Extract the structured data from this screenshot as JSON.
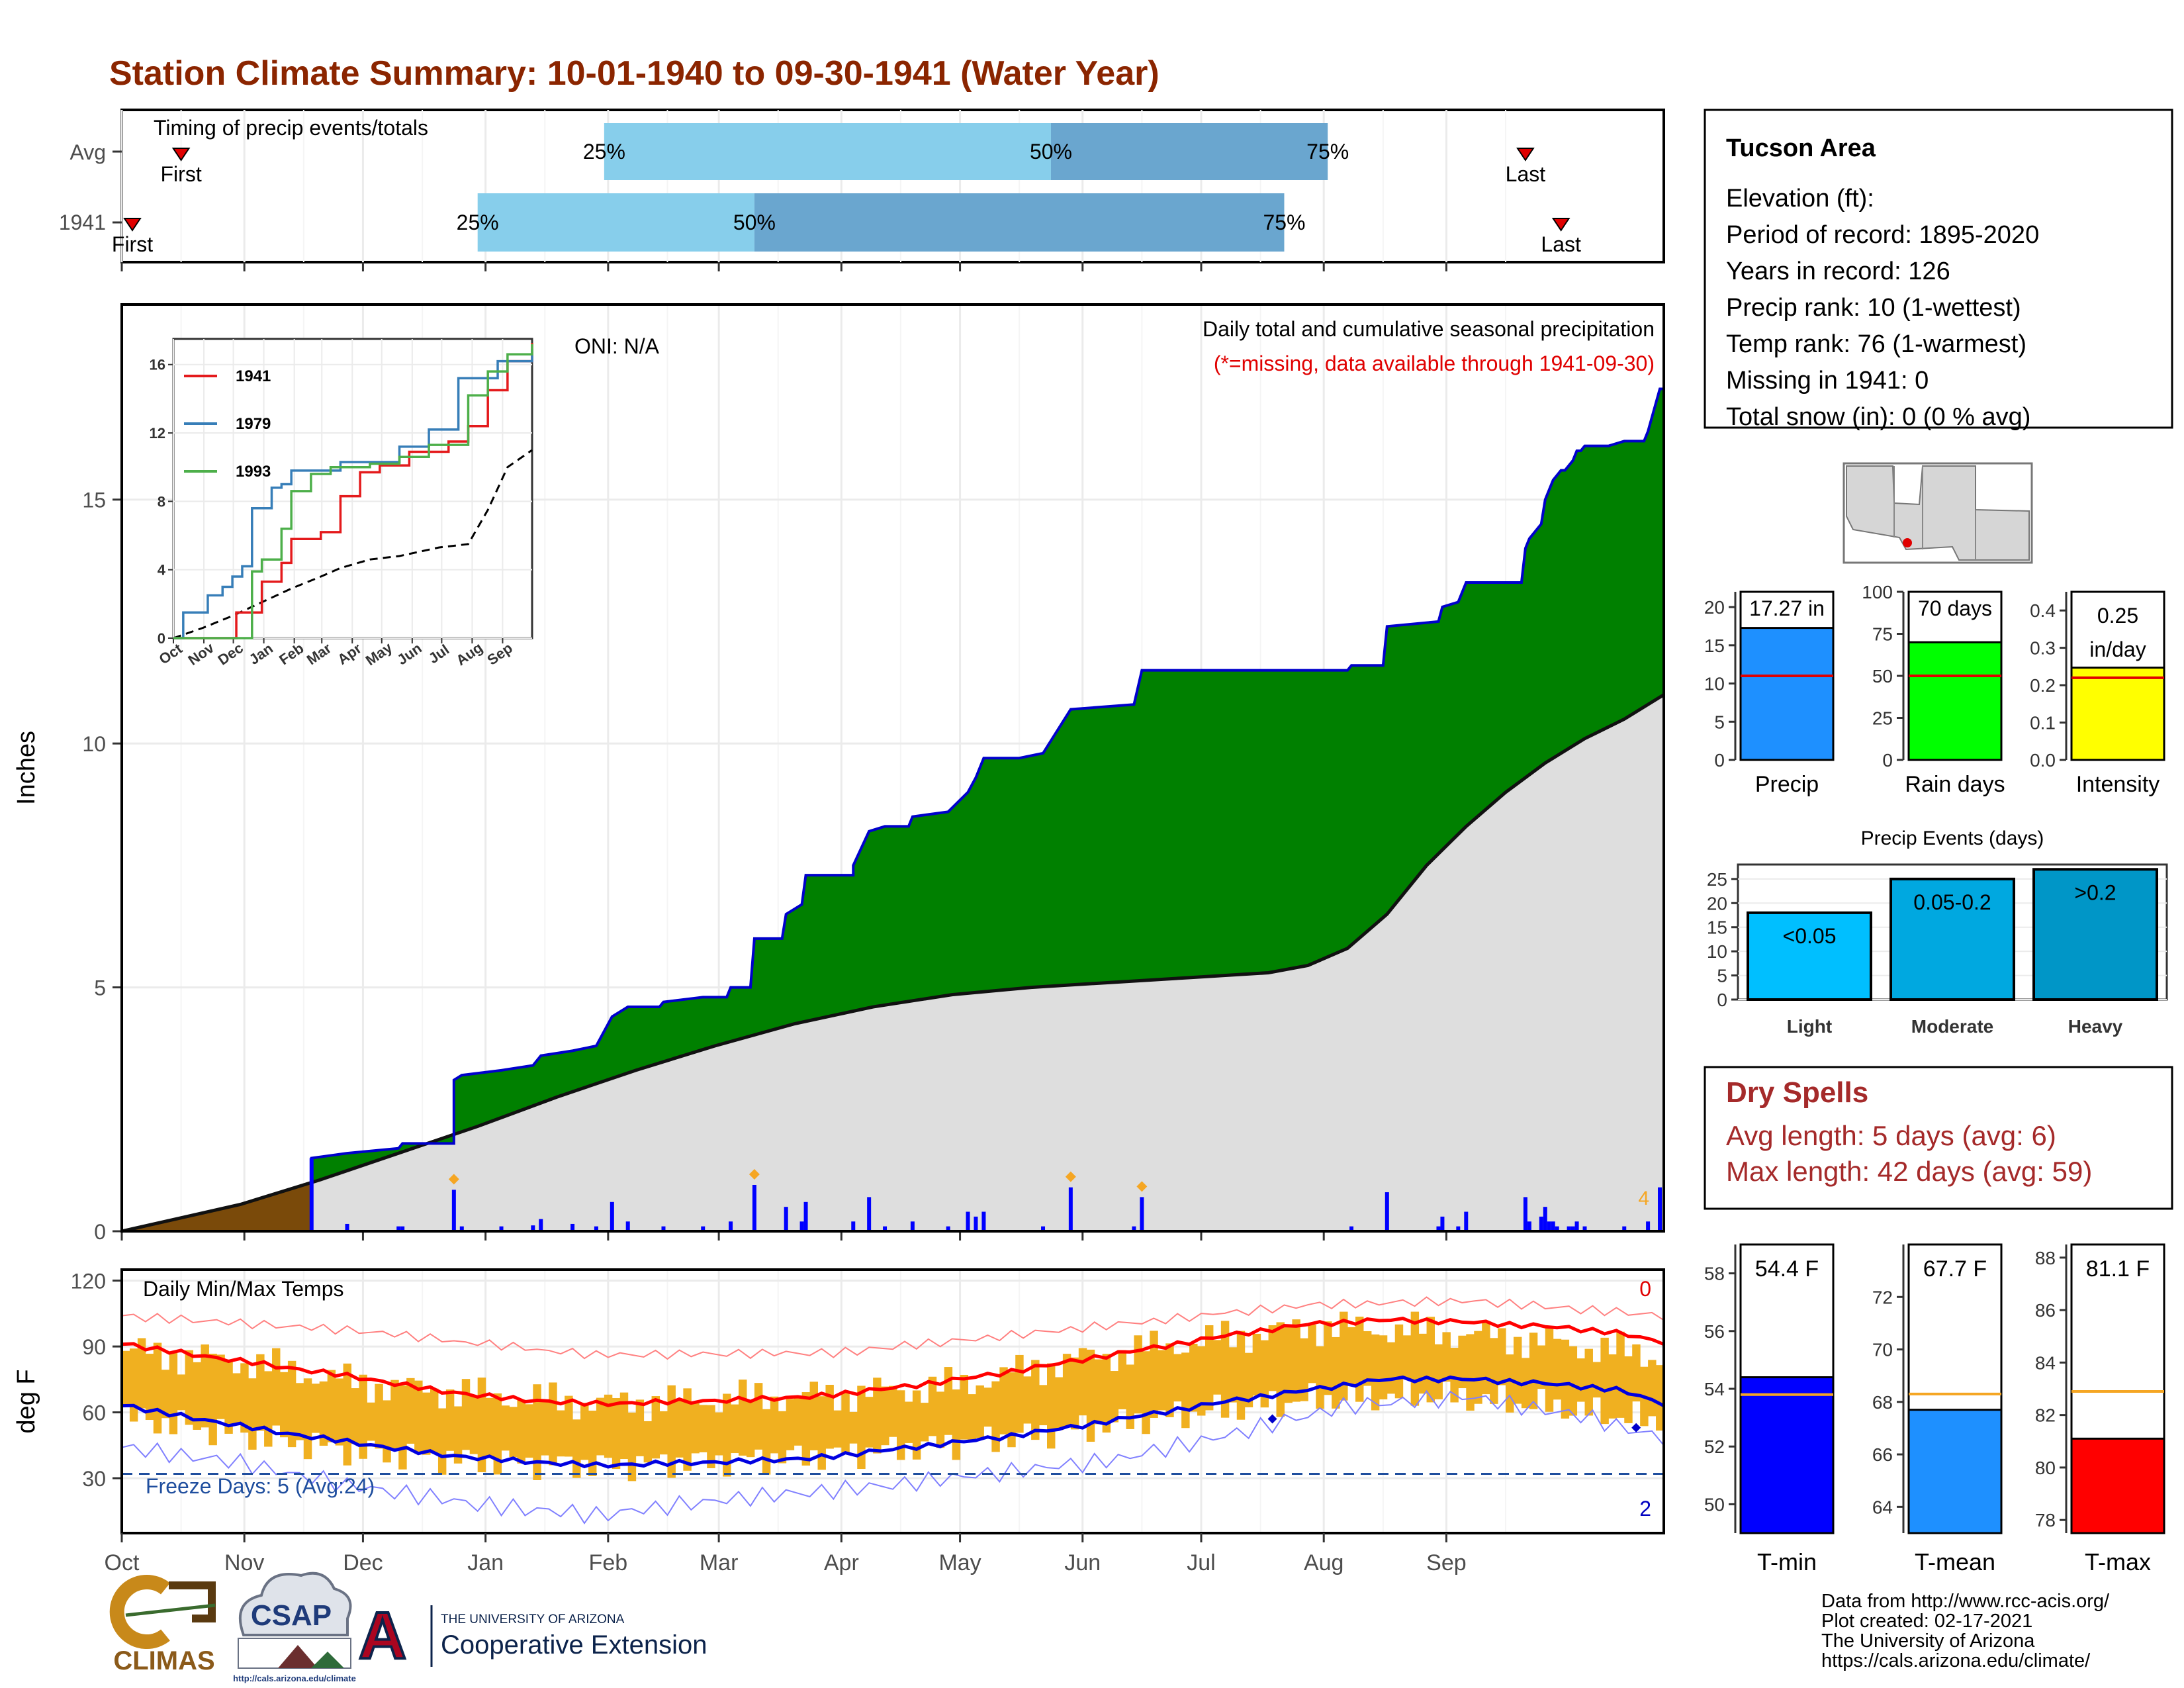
{
  "title": "Station Climate Summary: 10-01-1940 to 09-30-1941 (Water Year)",
  "months": [
    "Oct",
    "Nov",
    "Dec",
    "Jan",
    "Feb",
    "Mar",
    "Apr",
    "May",
    "Jun",
    "Jul",
    "Aug",
    "Sep"
  ],
  "timing": {
    "title": "Timing of precip events/totals",
    "rows": [
      {
        "label": "Avg",
        "first": "First",
        "last": "Last",
        "first_doy": 15,
        "last_doy": 355,
        "p25": 122,
        "p50": 235,
        "p75": 305
      },
      {
        "label": "1941",
        "first": "First",
        "last": "Last",
        "first_doy": 2,
        "last_doy": 364,
        "p25": 90,
        "p50": 160,
        "p75": 294
      }
    ],
    "p25_label": "25%",
    "p50_label": "50%",
    "p75_label": "75%"
  },
  "precip_panel": {
    "ylabel": "Inches",
    "annotation_title": "Daily total and cumulative seasonal precipitation",
    "annotation_missing": "(*=missing, data available through 1941-09-30)",
    "oni": "ONI: N/A",
    "yticks": [
      0,
      5,
      10,
      15
    ],
    "ylim": [
      0,
      19
    ],
    "end_marker": "4",
    "cumulative_steps": [
      [
        0,
        0.0
      ],
      [
        48,
        0.0
      ],
      [
        48,
        1.5
      ],
      [
        57,
        1.6
      ],
      [
        70,
        1.7
      ],
      [
        71,
        1.8
      ],
      [
        84,
        1.8
      ],
      [
        84,
        3.1
      ],
      [
        86,
        3.2
      ],
      [
        96,
        3.3
      ],
      [
        104,
        3.4
      ],
      [
        106,
        3.6
      ],
      [
        114,
        3.7
      ],
      [
        120,
        3.8
      ],
      [
        124,
        4.4
      ],
      [
        128,
        4.6
      ],
      [
        136,
        4.6
      ],
      [
        137,
        4.7
      ],
      [
        147,
        4.8
      ],
      [
        153,
        4.8
      ],
      [
        154,
        5.0
      ],
      [
        159,
        5.0
      ],
      [
        160,
        6.0
      ],
      [
        167,
        6.0
      ],
      [
        168,
        6.5
      ],
      [
        172,
        6.7
      ],
      [
        173,
        7.3
      ],
      [
        185,
        7.3
      ],
      [
        185,
        7.5
      ],
      [
        189,
        8.2
      ],
      [
        193,
        8.3
      ],
      [
        199,
        8.3
      ],
      [
        200,
        8.5
      ],
      [
        209,
        8.6
      ],
      [
        214,
        9.0
      ],
      [
        216,
        9.3
      ],
      [
        218,
        9.7
      ],
      [
        227,
        9.7
      ],
      [
        233,
        9.8
      ],
      [
        240,
        10.7
      ],
      [
        256,
        10.8
      ],
      [
        258,
        11.5
      ],
      [
        310,
        11.5
      ],
      [
        311,
        11.6
      ],
      [
        319,
        11.6
      ],
      [
        320,
        12.4
      ],
      [
        333,
        12.5
      ],
      [
        334,
        12.8
      ],
      [
        338,
        12.9
      ],
      [
        340,
        13.3
      ],
      [
        354,
        13.3
      ],
      [
        355,
        14.0
      ],
      [
        356,
        14.2
      ],
      [
        359,
        14.5
      ],
      [
        360,
        15.0
      ],
      [
        361,
        15.2
      ],
      [
        362,
        15.4
      ],
      [
        363,
        15.5
      ],
      [
        364,
        15.6
      ],
      [
        365,
        15.6
      ],
      [
        366,
        15.7
      ],
      [
        367,
        15.8
      ],
      [
        368,
        16.0
      ],
      [
        369,
        16.0
      ],
      [
        370,
        16.1
      ],
      [
        376,
        16.1
      ],
      [
        380,
        16.2
      ],
      [
        385,
        16.2
      ],
      [
        386,
        16.4
      ],
      [
        389,
        17.27
      ],
      [
        390,
        17.27
      ]
    ],
    "normal": [
      [
        0,
        0
      ],
      [
        30,
        0.55
      ],
      [
        50,
        1.05
      ],
      [
        70,
        1.6
      ],
      [
        90,
        2.15
      ],
      [
        110,
        2.75
      ],
      [
        130,
        3.3
      ],
      [
        150,
        3.8
      ],
      [
        170,
        4.25
      ],
      [
        190,
        4.6
      ],
      [
        210,
        4.85
      ],
      [
        230,
        5.0
      ],
      [
        250,
        5.1
      ],
      [
        270,
        5.2
      ],
      [
        290,
        5.3
      ],
      [
        300,
        5.45
      ],
      [
        310,
        5.8
      ],
      [
        320,
        6.5
      ],
      [
        330,
        7.5
      ],
      [
        340,
        8.3
      ],
      [
        350,
        9.0
      ],
      [
        360,
        9.6
      ],
      [
        370,
        10.1
      ],
      [
        380,
        10.5
      ],
      [
        390,
        11.0
      ]
    ],
    "daily_bars": [
      [
        48,
        1.5
      ],
      [
        57,
        0.15
      ],
      [
        70,
        0.1
      ],
      [
        71,
        0.1
      ],
      [
        84,
        0.85
      ],
      [
        86,
        0.1
      ],
      [
        96,
        0.1
      ],
      [
        104,
        0.12
      ],
      [
        106,
        0.25
      ],
      [
        114,
        0.15
      ],
      [
        120,
        0.1
      ],
      [
        124,
        0.6
      ],
      [
        128,
        0.2
      ],
      [
        137,
        0.1
      ],
      [
        147,
        0.1
      ],
      [
        154,
        0.2
      ],
      [
        160,
        0.95
      ],
      [
        168,
        0.5
      ],
      [
        172,
        0.2
      ],
      [
        173,
        0.6
      ],
      [
        185,
        0.2
      ],
      [
        189,
        0.7
      ],
      [
        193,
        0.1
      ],
      [
        200,
        0.2
      ],
      [
        209,
        0.1
      ],
      [
        214,
        0.4
      ],
      [
        216,
        0.3
      ],
      [
        218,
        0.4
      ],
      [
        233,
        0.1
      ],
      [
        240,
        0.9
      ],
      [
        256,
        0.1
      ],
      [
        258,
        0.7
      ],
      [
        311,
        0.1
      ],
      [
        320,
        0.8
      ],
      [
        333,
        0.1
      ],
      [
        334,
        0.3
      ],
      [
        338,
        0.1
      ],
      [
        340,
        0.4
      ],
      [
        355,
        0.7
      ],
      [
        356,
        0.2
      ],
      [
        359,
        0.3
      ],
      [
        360,
        0.5
      ],
      [
        361,
        0.2
      ],
      [
        362,
        0.2
      ],
      [
        363,
        0.1
      ],
      [
        366,
        0.1
      ],
      [
        367,
        0.1
      ],
      [
        368,
        0.2
      ],
      [
        370,
        0.1
      ],
      [
        380,
        0.1
      ],
      [
        386,
        0.2
      ],
      [
        389,
        0.9
      ]
    ],
    "orange_diamonds": [
      84,
      160,
      240,
      258
    ],
    "inset": {
      "yticks": [
        0,
        4,
        8,
        12,
        16
      ],
      "ylim": [
        0,
        17.5
      ],
      "series": [
        {
          "name": "1941",
          "color": "#e41a1c",
          "points": [
            [
              0,
              0
            ],
            [
              60,
              0
            ],
            [
              64,
              1.5
            ],
            [
              90,
              3.3
            ],
            [
              110,
              4.4
            ],
            [
              120,
              5.8
            ],
            [
              150,
              6.2
            ],
            [
              170,
              8.3
            ],
            [
              190,
              9.7
            ],
            [
              210,
              10.1
            ],
            [
              240,
              10.9
            ],
            [
              280,
              11.5
            ],
            [
              300,
              12.4
            ],
            [
              320,
              14.5
            ],
            [
              340,
              16.2
            ],
            [
              365,
              16.2
            ],
            [
              365,
              17.27
            ]
          ]
        },
        {
          "name": "1979",
          "color": "#377eb8",
          "points": [
            [
              0,
              0
            ],
            [
              5,
              0
            ],
            [
              10,
              1.5
            ],
            [
              30,
              1.5
            ],
            [
              35,
              2.5
            ],
            [
              50,
              3
            ],
            [
              60,
              3.6
            ],
            [
              70,
              4.2
            ],
            [
              80,
              7.6
            ],
            [
              100,
              8.8
            ],
            [
              110,
              9.0
            ],
            [
              120,
              9.8
            ],
            [
              170,
              10.3
            ],
            [
              200,
              10.3
            ],
            [
              230,
              11.2
            ],
            [
              260,
              12.2
            ],
            [
              290,
              15.2
            ],
            [
              330,
              16.2
            ],
            [
              365,
              16.9
            ]
          ]
        },
        {
          "name": "1993",
          "color": "#4daf4a",
          "points": [
            [
              0,
              0
            ],
            [
              70,
              0
            ],
            [
              80,
              3.9
            ],
            [
              90,
              4.6
            ],
            [
              110,
              6.4
            ],
            [
              120,
              8.6
            ],
            [
              140,
              9.6
            ],
            [
              160,
              10.0
            ],
            [
              200,
              10.2
            ],
            [
              230,
              10.6
            ],
            [
              260,
              11.3
            ],
            [
              300,
              14.2
            ],
            [
              320,
              15.6
            ],
            [
              340,
              16.6
            ],
            [
              365,
              17.2
            ]
          ]
        }
      ],
      "avg": [
        [
          0,
          0
        ],
        [
          30,
          0.6
        ],
        [
          60,
          1.3
        ],
        [
          90,
          2.1
        ],
        [
          120,
          2.9
        ],
        [
          150,
          3.6
        ],
        [
          170,
          4.1
        ],
        [
          200,
          4.6
        ],
        [
          230,
          4.8
        ],
        [
          270,
          5.3
        ],
        [
          300,
          5.5
        ],
        [
          320,
          7.5
        ],
        [
          340,
          10.0
        ],
        [
          365,
          11.0
        ]
      ]
    }
  },
  "temp_panel": {
    "ylabel": "deg F",
    "title": "Daily Min/Max Temps",
    "freeze_label": "Freeze Days: 5 (Avg:24)",
    "top_count": "0",
    "bottom_count": "2",
    "yticks": [
      30,
      60,
      90,
      120
    ],
    "ylim": [
      5,
      125
    ],
    "freeze_line": 32,
    "avg_max": [
      [
        0,
        91
      ],
      [
        20,
        86
      ],
      [
        40,
        81
      ],
      [
        60,
        76
      ],
      [
        80,
        70
      ],
      [
        100,
        66
      ],
      [
        120,
        64
      ],
      [
        140,
        65
      ],
      [
        160,
        66
      ],
      [
        180,
        68
      ],
      [
        200,
        72
      ],
      [
        220,
        77
      ],
      [
        240,
        83
      ],
      [
        260,
        89
      ],
      [
        280,
        95
      ],
      [
        300,
        100
      ],
      [
        320,
        102
      ],
      [
        340,
        101
      ],
      [
        360,
        99
      ],
      [
        380,
        96
      ],
      [
        390,
        92
      ]
    ],
    "avg_min": [
      [
        0,
        63
      ],
      [
        20,
        57
      ],
      [
        40,
        51
      ],
      [
        60,
        46
      ],
      [
        80,
        41
      ],
      [
        100,
        38
      ],
      [
        120,
        36
      ],
      [
        140,
        37
      ],
      [
        160,
        38
      ],
      [
        180,
        40
      ],
      [
        200,
        44
      ],
      [
        220,
        48
      ],
      [
        240,
        53
      ],
      [
        260,
        59
      ],
      [
        280,
        65
      ],
      [
        300,
        70
      ],
      [
        320,
        75
      ],
      [
        340,
        75
      ],
      [
        360,
        73
      ],
      [
        380,
        70
      ],
      [
        390,
        64
      ]
    ],
    "rec_max": [
      [
        0,
        104
      ],
      [
        60,
        97
      ],
      [
        120,
        86
      ],
      [
        180,
        87
      ],
      [
        240,
        98
      ],
      [
        300,
        109
      ],
      [
        340,
        111
      ],
      [
        390,
        104
      ]
    ],
    "rec_min": [
      [
        0,
        44
      ],
      [
        30,
        37
      ],
      [
        60,
        26
      ],
      [
        90,
        18
      ],
      [
        120,
        13
      ],
      [
        150,
        20
      ],
      [
        190,
        26
      ],
      [
        220,
        32
      ],
      [
        250,
        38
      ],
      [
        280,
        50
      ],
      [
        310,
        63
      ],
      [
        340,
        67
      ],
      [
        370,
        58
      ],
      [
        390,
        48
      ]
    ],
    "obs_max": [
      [
        0,
        88
      ],
      [
        30,
        83
      ],
      [
        60,
        73
      ],
      [
        90,
        68
      ],
      [
        120,
        64
      ],
      [
        150,
        66
      ],
      [
        180,
        68
      ],
      [
        210,
        72
      ],
      [
        240,
        84
      ],
      [
        270,
        92
      ],
      [
        300,
        99
      ],
      [
        330,
        97
      ],
      [
        360,
        92
      ],
      [
        390,
        85
      ]
    ],
    "obs_min": [
      [
        0,
        58
      ],
      [
        30,
        50
      ],
      [
        60,
        42
      ],
      [
        90,
        38
      ],
      [
        120,
        36
      ],
      [
        150,
        38
      ],
      [
        180,
        41
      ],
      [
        210,
        46
      ],
      [
        240,
        52
      ],
      [
        270,
        60
      ],
      [
        300,
        66
      ],
      [
        330,
        68
      ],
      [
        360,
        63
      ],
      [
        390,
        55
      ]
    ],
    "diamonds": [
      [
        291,
        57
      ],
      [
        383,
        53
      ]
    ]
  },
  "station_box": {
    "name": "Tucson Area",
    "lines": [
      "Elevation (ft):",
      "Period of record: 1895-2020",
      "Years in record: 126",
      "Precip rank: 10 (1-wettest)",
      "Temp rank: 76 (1-warmest)",
      "Missing in 1941: 0",
      "Total snow (in): 0 (0 % avg)"
    ]
  },
  "precip_summary": [
    {
      "label": "Precip",
      "value_label": "17.27 in",
      "value": 17.27,
      "avg": 11.0,
      "ylim": [
        0,
        22
      ],
      "yticks": [
        0,
        5,
        10,
        15,
        20
      ],
      "color": "#1e90ff"
    },
    {
      "label": "Rain days",
      "value_label": "70 days",
      "value": 70,
      "avg": 50,
      "ylim": [
        0,
        100
      ],
      "yticks": [
        0,
        25,
        50,
        75,
        100
      ],
      "color": "#00ff00"
    },
    {
      "label": "Intensity",
      "value_label": "0.25 in/day",
      "value_label_1": "0.25",
      "value_label_2": "in/day",
      "value": 0.247,
      "avg": 0.22,
      "ylim": [
        0,
        0.45
      ],
      "yticks": [
        "0.0",
        "0.1",
        "0.2",
        "0.3",
        "0.4"
      ],
      "ytick_values": [
        0,
        0.1,
        0.2,
        0.3,
        0.4
      ],
      "color": "#ffff00"
    }
  ],
  "events": {
    "title": "Precip Events (days)",
    "yticks": [
      0,
      5,
      10,
      15,
      20,
      25
    ],
    "ylim": [
      0,
      28
    ],
    "bars": [
      {
        "category": "Light",
        "label": "<0.05",
        "value": 18,
        "color": "#00bfff"
      },
      {
        "category": "Moderate",
        "label": "0.05-0.2",
        "value": 25,
        "color": "#00a8e0"
      },
      {
        "category": "Heavy",
        "label": ">0.2",
        "value": 27,
        "color": "#0096c7"
      }
    ]
  },
  "dry_spells": {
    "title": "Dry Spells",
    "avg_line": "Avg length: 5 days (avg: 6)",
    "max_line": "Max length: 42 days (avg: 59)"
  },
  "temp_summary": [
    {
      "label": "T-min",
      "value_label": "54.4 F",
      "value": 54.4,
      "avg": 53.8,
      "ylim": [
        49,
        59
      ],
      "yticks": [
        50,
        52,
        54,
        56,
        58
      ],
      "color": "#0000ff"
    },
    {
      "label": "T-mean",
      "value_label": "67.7 F",
      "value": 67.7,
      "avg": 68.3,
      "ylim": [
        63,
        74
      ],
      "yticks": [
        64,
        66,
        68,
        70,
        72
      ],
      "color": "#1e90ff"
    },
    {
      "label": "T-max",
      "value_label": "81.1 F",
      "value": 81.1,
      "avg": 82.9,
      "ylim": [
        77.5,
        88.5
      ],
      "yticks": [
        78,
        80,
        82,
        84,
        86,
        88
      ],
      "color": "#ff0000"
    }
  ],
  "footer": {
    "lines": [
      "Data from http://www.rcc-acis.org/",
      "Plot created: 02-17-2021",
      "The University of Arizona",
      "https://cals.arizona.edu/climate/"
    ],
    "climas": "CLIMAS",
    "csap": "CSAP",
    "csap_url": "http://cals.arizona.edu/climate",
    "ua_small": "THE UNIVERSITY OF ARIZONA",
    "coop": "Cooperative Extension",
    "ua_letter": "A"
  },
  "colors": {
    "title": "#8b2500",
    "cumulative": "#008000",
    "normal_fill": "#dedede",
    "early": "#7a4a0a",
    "daily_bar": "#0000ff",
    "temp_bar": "#f0b020",
    "dry": "#a52a2a"
  }
}
